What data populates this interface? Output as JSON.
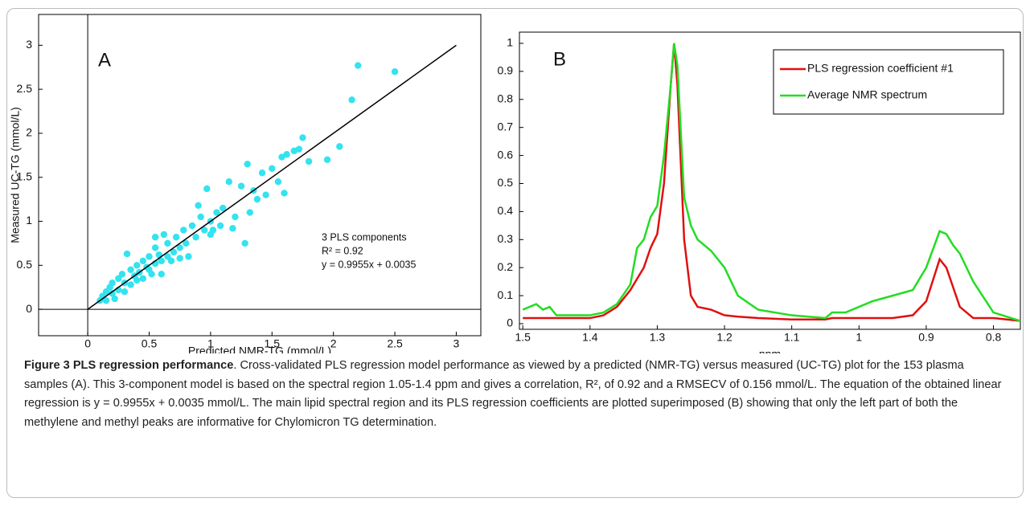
{
  "chart_data": [
    {
      "type": "scatter",
      "panel_label": "A",
      "x_label": "Predicted NMR-TG (mmol/L)",
      "y_label": "Measured UC-TG (mmol/L)",
      "annotations": [
        "3 PLS components",
        "R² = 0.92",
        "y = 0.9955x + 0.0035"
      ],
      "color": "#33e3ef",
      "x": [
        0.1,
        0.12,
        0.15,
        0.15,
        0.18,
        0.2,
        0.2,
        0.22,
        0.25,
        0.25,
        0.28,
        0.3,
        0.3,
        0.32,
        0.35,
        0.35,
        0.38,
        0.4,
        0.4,
        0.42,
        0.45,
        0.45,
        0.48,
        0.5,
        0.5,
        0.52,
        0.55,
        0.55,
        0.58,
        0.6,
        0.6,
        0.62,
        0.65,
        0.65,
        0.68,
        0.7,
        0.72,
        0.75,
        0.78,
        0.8,
        0.82,
        0.85,
        0.88,
        0.9,
        0.92,
        0.95,
        0.97,
        1.0,
        1.02,
        1.05,
        1.08,
        1.1,
        1.15,
        1.18,
        1.2,
        1.25,
        1.28,
        1.3,
        1.32,
        1.38,
        1.42,
        1.45,
        1.5,
        1.55,
        1.58,
        1.62,
        1.68,
        1.72,
        1.75,
        1.8,
        1.95,
        2.05,
        2.15,
        2.2,
        2.5,
        0.55,
        0.75,
        1.0,
        1.35,
        1.6
      ],
      "y": [
        0.1,
        0.15,
        0.2,
        0.1,
        0.25,
        0.3,
        0.18,
        0.12,
        0.35,
        0.22,
        0.4,
        0.3,
        0.2,
        0.63,
        0.45,
        0.28,
        0.38,
        0.5,
        0.33,
        0.42,
        0.55,
        0.35,
        0.48,
        0.6,
        0.45,
        0.4,
        0.7,
        0.52,
        0.62,
        0.55,
        0.4,
        0.85,
        0.6,
        0.75,
        0.55,
        0.65,
        0.82,
        0.7,
        0.9,
        0.75,
        0.6,
        0.95,
        0.82,
        1.18,
        1.05,
        0.9,
        1.37,
        1.0,
        0.9,
        1.1,
        0.95,
        1.15,
        1.45,
        0.92,
        1.05,
        1.4,
        0.75,
        1.65,
        1.1,
        1.25,
        1.55,
        1.3,
        1.6,
        1.45,
        1.73,
        1.76,
        1.8,
        1.82,
        1.95,
        1.68,
        1.7,
        1.85,
        2.38,
        2.77,
        2.7,
        0.82,
        0.58,
        0.85,
        1.35,
        1.32
      ],
      "fit_line": {
        "x": [
          0,
          3
        ],
        "y": [
          0,
          3
        ]
      },
      "xlim": [
        -0.4,
        3.2
      ],
      "ylim": [
        -0.3,
        3.35
      ],
      "xticks": [
        0,
        0.5,
        1,
        1.5,
        2,
        2.5,
        3
      ],
      "yticks": [
        0,
        0.5,
        1,
        1.5,
        2,
        2.5,
        3
      ]
    },
    {
      "type": "line",
      "panel_label": "B",
      "x_label": "ppm",
      "legend": "top-right",
      "x": [
        1.5,
        1.48,
        1.47,
        1.46,
        1.45,
        1.4,
        1.38,
        1.36,
        1.34,
        1.33,
        1.32,
        1.31,
        1.3,
        1.29,
        1.28,
        1.275,
        1.27,
        1.26,
        1.25,
        1.24,
        1.22,
        1.2,
        1.18,
        1.15,
        1.1,
        1.05,
        1.04,
        1.02,
        1.0,
        0.98,
        0.95,
        0.92,
        0.9,
        0.88,
        0.87,
        0.86,
        0.85,
        0.83,
        0.8,
        0.76
      ],
      "series": [
        {
          "name": "PLS regression coefficient #1",
          "color": "#e01010",
          "values": [
            0.02,
            0.02,
            0.02,
            0.02,
            0.02,
            0.02,
            0.03,
            0.06,
            0.12,
            0.16,
            0.2,
            0.27,
            0.32,
            0.5,
            0.85,
            1.0,
            0.85,
            0.3,
            0.1,
            0.06,
            0.05,
            0.03,
            0.025,
            0.02,
            0.015,
            0.015,
            0.02,
            0.02,
            0.02,
            0.02,
            0.02,
            0.03,
            0.08,
            0.23,
            0.2,
            0.13,
            0.06,
            0.02,
            0.02,
            0.01
          ]
        },
        {
          "name": "Average NMR spectrum",
          "color": "#22dd22",
          "values": [
            0.05,
            0.07,
            0.05,
            0.06,
            0.03,
            0.03,
            0.04,
            0.07,
            0.14,
            0.27,
            0.3,
            0.38,
            0.42,
            0.6,
            0.85,
            1.0,
            0.92,
            0.45,
            0.35,
            0.3,
            0.26,
            0.2,
            0.1,
            0.05,
            0.03,
            0.02,
            0.04,
            0.04,
            0.06,
            0.08,
            0.1,
            0.12,
            0.2,
            0.33,
            0.32,
            0.28,
            0.25,
            0.15,
            0.04,
            0.01
          ]
        }
      ],
      "xlim": [
        1.505,
        0.76
      ],
      "ylim": [
        -0.02,
        1.04
      ],
      "xticks": [
        1.5,
        1.4,
        1.3,
        1.2,
        1.1,
        1,
        0.9,
        0.8
      ],
      "yticks": [
        0,
        0.1,
        0.2,
        0.3,
        0.4,
        0.5,
        0.6,
        0.7,
        0.8,
        0.9,
        1
      ]
    }
  ],
  "caption": {
    "label": "Figure 3",
    "title": "PLS regression performance",
    "text": ". Cross-validated PLS regression model performance as viewed by a predicted (NMR-TG) versus measured (UC-TG) plot for the 153 plasma samples (A). This 3-component model is based on the spectral region 1.05-1.4 ppm and gives a correlation, R², of 0.92 and a RMSECV of 0.156 mmol/L. The equation of the obtained linear regression is y = 0.9955x + 0.0035 mmol/L. The main lipid spectral region and its PLS regression coefficients are plotted superimposed (B) showing that only the left part of both the methylene and methyl peaks are informative for Chylomicron TG determination."
  }
}
